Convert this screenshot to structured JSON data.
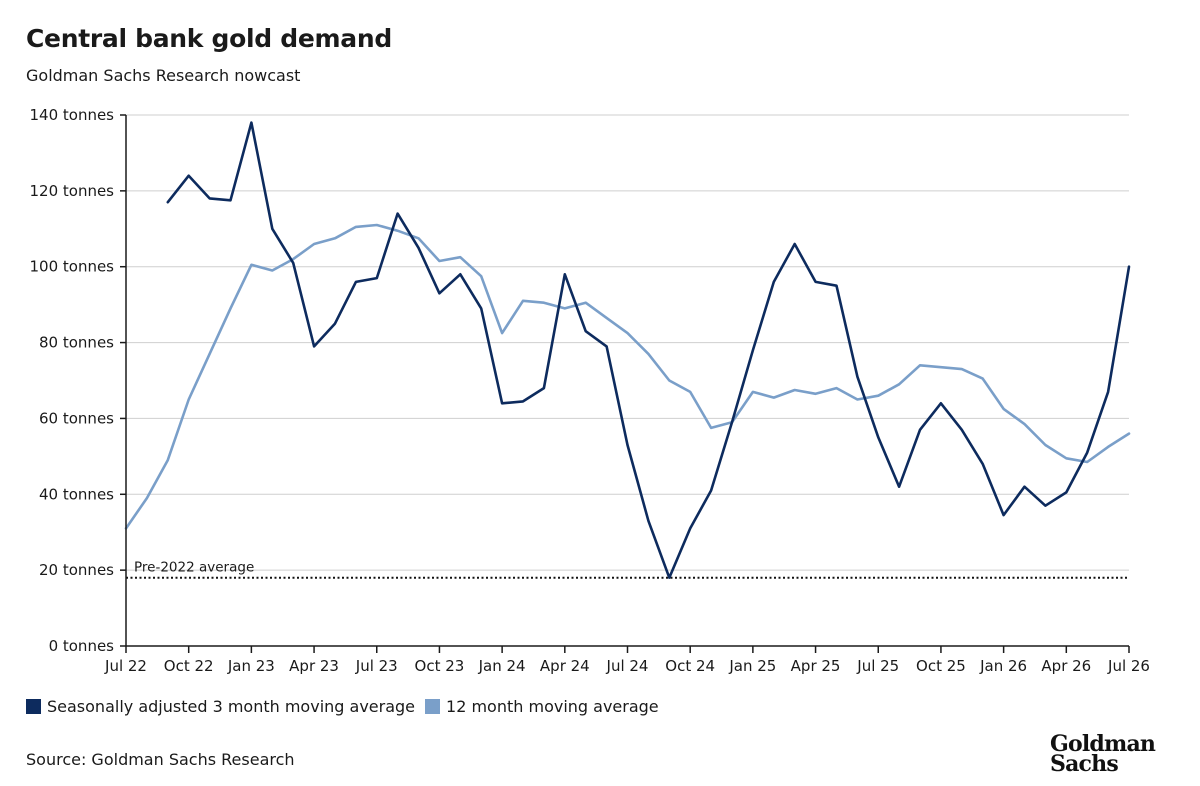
{
  "header": {
    "title": "Central bank gold demand",
    "subtitle": "Goldman Sachs Research nowcast"
  },
  "legend": {
    "items": [
      {
        "label": "Seasonally adjusted 3 month moving average",
        "color": "#0d2b5e"
      },
      {
        "label": "12 month moving average",
        "color": "#7a9fc9"
      }
    ]
  },
  "footer": {
    "source": "Source: Goldman Sachs Research",
    "logo_line1": "Goldman",
    "logo_line2": "Sachs"
  },
  "chart_data": {
    "type": "line",
    "x_tick_labels": [
      "Jul 22",
      "Oct 22",
      "Jan 23",
      "Apr 23",
      "Jul 23",
      "Oct 23",
      "Jan 24",
      "Apr 24",
      "Jul 24",
      "Oct 24",
      "Jan 25",
      "Apr 25",
      "Jul 25",
      "Oct 25",
      "Jan 26",
      "Apr 26",
      "Jul 26"
    ],
    "y_ticks": [
      0,
      20,
      40,
      60,
      80,
      100,
      120,
      140
    ],
    "y_tick_labels": [
      "0 tonnes",
      "20 tonnes",
      "40 tonnes",
      "60 tonnes",
      "80 tonnes",
      "100 tonnes",
      "120 tonnes",
      "140 tonnes"
    ],
    "ylim": [
      0,
      140
    ],
    "xlim": [
      "2022-07",
      "2026-07"
    ],
    "grid": "horizontal",
    "reference_line": {
      "label": "Pre-2022 average",
      "value": 18
    },
    "series": [
      {
        "name": "Seasonally adjusted 3 month moving average",
        "color": "#0d2b5e",
        "x": [
          "2022-09",
          "2022-10",
          "2022-11",
          "2022-12",
          "2023-01",
          "2023-02",
          "2023-03",
          "2023-04",
          "2023-05",
          "2023-06",
          "2023-07",
          "2023-08",
          "2023-09",
          "2023-10",
          "2023-11",
          "2023-12",
          "2024-01",
          "2024-02",
          "2024-03",
          "2024-04",
          "2024-05",
          "2024-06",
          "2024-07",
          "2024-08",
          "2024-09",
          "2024-10",
          "2024-11",
          "2024-12",
          "2025-01",
          "2025-02",
          "2025-03",
          "2025-04",
          "2025-05",
          "2025-06",
          "2025-07",
          "2025-08",
          "2025-09",
          "2025-10",
          "2025-11",
          "2025-12",
          "2026-01",
          "2026-02",
          "2026-03",
          "2026-04",
          "2026-05",
          "2026-06",
          "2026-07"
        ],
        "values": [
          117,
          124,
          118,
          117.5,
          138,
          110,
          101,
          79,
          85,
          96,
          97,
          114,
          105,
          93,
          98,
          89,
          64,
          64.5,
          68,
          98,
          83,
          79,
          53,
          33,
          18,
          31,
          41,
          59,
          78,
          96,
          106,
          96,
          95,
          71,
          55,
          42,
          57,
          64,
          57,
          48,
          34.5,
          42,
          37,
          40.5,
          51,
          67,
          100
        ]
      },
      {
        "name": "12 month moving average",
        "color": "#7a9fc9",
        "x": [
          "2022-07",
          "2022-08",
          "2022-09",
          "2022-10",
          "2022-11",
          "2022-12",
          "2023-01",
          "2023-02",
          "2023-03",
          "2023-04",
          "2023-05",
          "2023-06",
          "2023-07",
          "2023-08",
          "2023-09",
          "2023-10",
          "2023-11",
          "2023-12",
          "2024-01",
          "2024-02",
          "2024-03",
          "2024-04",
          "2024-05",
          "2024-06",
          "2024-07",
          "2024-08",
          "2024-09",
          "2024-10",
          "2024-11",
          "2024-12",
          "2025-01",
          "2025-02",
          "2025-03",
          "2025-04",
          "2025-05",
          "2025-06",
          "2025-07",
          "2025-08",
          "2025-09",
          "2025-10",
          "2025-11",
          "2025-12",
          "2026-01",
          "2026-02",
          "2026-03",
          "2026-04",
          "2026-05",
          "2026-06",
          "2026-07"
        ],
        "values": [
          31,
          39,
          49,
          65,
          77,
          89,
          100.5,
          99,
          102,
          106,
          107.5,
          110.5,
          111,
          109.5,
          107.5,
          101.5,
          102.5,
          97.5,
          82.5,
          91,
          90.5,
          89,
          90.5,
          86.5,
          82.5,
          77,
          70,
          67,
          57.5,
          59,
          67,
          65.5,
          67.5,
          66.5,
          68,
          65,
          66,
          69,
          74,
          73.5,
          73,
          70.5,
          62.5,
          58.5,
          53,
          49.5,
          48.5,
          52.5,
          56
        ]
      }
    ]
  }
}
